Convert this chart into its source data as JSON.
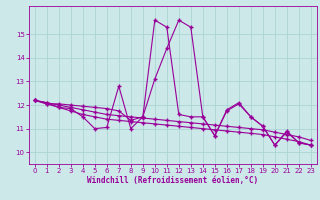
{
  "xlabel": "Windchill (Refroidissement éolien,°C)",
  "bg_color": "#cce8e8",
  "line_color": "#990099",
  "grid_color": "#aad4d4",
  "xlim": [
    -0.5,
    23.5
  ],
  "ylim": [
    9.5,
    16.2
  ],
  "yticks": [
    10,
    11,
    12,
    13,
    14,
    15
  ],
  "xticks": [
    0,
    1,
    2,
    3,
    4,
    5,
    6,
    7,
    8,
    9,
    10,
    11,
    12,
    13,
    14,
    15,
    16,
    17,
    18,
    19,
    20,
    21,
    22,
    23
  ],
  "series_main": [
    12.2,
    12.1,
    11.9,
    11.85,
    11.5,
    11.0,
    11.05,
    12.8,
    11.0,
    11.5,
    15.6,
    15.3,
    11.6,
    11.5,
    11.5,
    10.7,
    11.8,
    12.1,
    11.5,
    11.1,
    10.3,
    10.9,
    10.4,
    10.3
  ],
  "series_high": [
    12.2,
    12.05,
    12.05,
    12.0,
    11.95,
    11.9,
    11.85,
    11.75,
    11.35,
    11.5,
    13.1,
    14.4,
    15.6,
    15.3,
    11.5,
    10.7,
    11.75,
    12.05,
    11.5,
    11.1,
    10.3,
    10.85,
    10.4,
    10.3
  ],
  "trend1": [
    12.2,
    12.05,
    11.9,
    11.75,
    11.6,
    11.5,
    11.4,
    11.35,
    11.3,
    11.25,
    11.2,
    11.15,
    11.1,
    11.05,
    11.0,
    10.95,
    10.9,
    10.85,
    10.8,
    10.75,
    10.65,
    10.55,
    10.45,
    10.3
  ],
  "trend2": [
    12.2,
    12.1,
    12.0,
    11.9,
    11.8,
    11.7,
    11.6,
    11.55,
    11.5,
    11.45,
    11.4,
    11.35,
    11.3,
    11.25,
    11.2,
    11.15,
    11.1,
    11.05,
    11.0,
    10.95,
    10.85,
    10.75,
    10.65,
    10.5
  ]
}
